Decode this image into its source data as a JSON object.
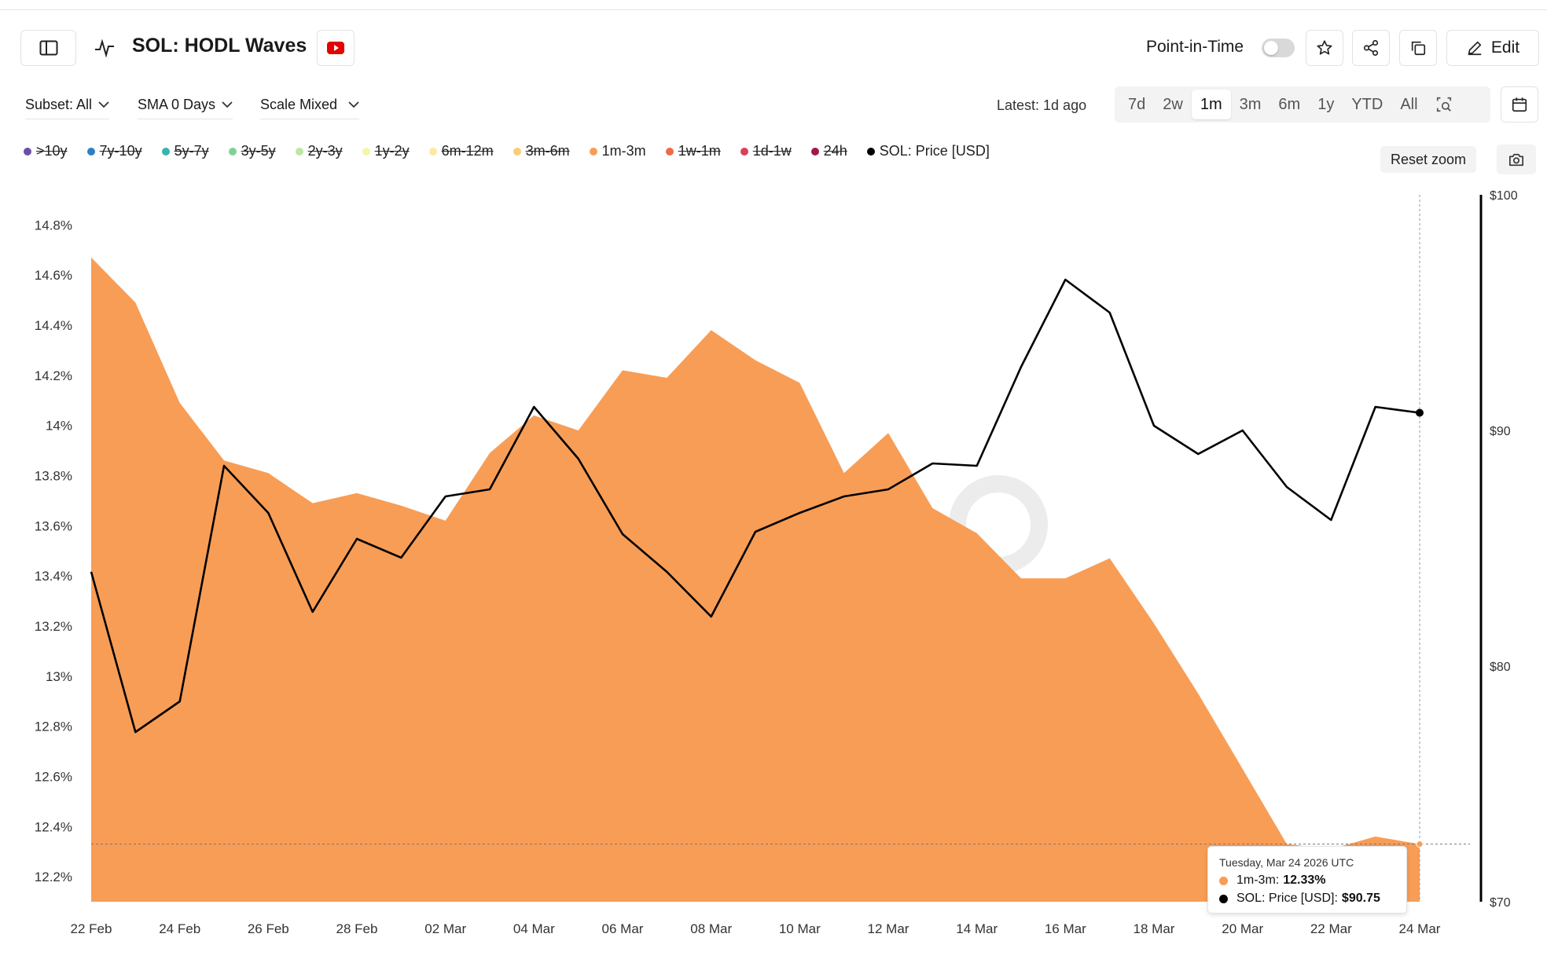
{
  "header": {
    "title": "SOL: HODL Waves",
    "point_in_time_label": "Point-in-Time",
    "edit_label": "Edit"
  },
  "filters": {
    "subset": "Subset: All",
    "sma": "SMA 0 Days",
    "scale": "Scale Mixed"
  },
  "latest": "Latest: 1d ago",
  "ranges": [
    "7d",
    "2w",
    "1m",
    "3m",
    "6m",
    "1y",
    "YTD",
    "All"
  ],
  "active_range": "1m",
  "reset_zoom_label": "Reset zoom",
  "legend": [
    {
      "label": ">10y",
      "color": "#6b4fa8",
      "hidden": true
    },
    {
      "label": "7y-10y",
      "color": "#2f7fc4",
      "hidden": true
    },
    {
      "label": "5y-7y",
      "color": "#35b5ad",
      "hidden": true
    },
    {
      "label": "3y-5y",
      "color": "#7ed19a",
      "hidden": true
    },
    {
      "label": "2y-3y",
      "color": "#bfe6a2",
      "hidden": true
    },
    {
      "label": "1y-2y",
      "color": "#f3f6a8",
      "hidden": true
    },
    {
      "label": "6m-12m",
      "color": "#fde9a5",
      "hidden": true
    },
    {
      "label": "3m-6m",
      "color": "#fccb76",
      "hidden": true
    },
    {
      "label": "1m-3m",
      "color": "#f89d56",
      "hidden": false
    },
    {
      "label": "1w-1m",
      "color": "#ee6a47",
      "hidden": true
    },
    {
      "label": "1d-1w",
      "color": "#d9405a",
      "hidden": true
    },
    {
      "label": "24h",
      "color": "#a3164e",
      "hidden": true
    },
    {
      "label": "SOL: Price [USD]",
      "color": "#000000",
      "hidden": false
    }
  ],
  "tooltip": {
    "date": "Tuesday, Mar 24 2026 UTC",
    "series1_label": "1m-3m:",
    "series1_value": "12.33%",
    "series2_label": "SOL: Price [USD]:",
    "series2_value": "$90.75"
  },
  "chart_data": {
    "type": "area",
    "title": "SOL: HODL Waves",
    "x": [
      "22 Feb",
      "23 Feb",
      "24 Feb",
      "25 Feb",
      "26 Feb",
      "27 Feb",
      "28 Feb",
      "01 Mar",
      "02 Mar",
      "03 Mar",
      "04 Mar",
      "05 Mar",
      "06 Mar",
      "07 Mar",
      "08 Mar",
      "09 Mar",
      "10 Mar",
      "11 Mar",
      "12 Mar",
      "13 Mar",
      "14 Mar",
      "15 Mar",
      "16 Mar",
      "17 Mar",
      "18 Mar",
      "19 Mar",
      "20 Mar",
      "21 Mar",
      "22 Mar",
      "23 Mar",
      "24 Mar"
    ],
    "xticks": [
      "22 Feb",
      "24 Feb",
      "26 Feb",
      "28 Feb",
      "02 Mar",
      "04 Mar",
      "06 Mar",
      "08 Mar",
      "10 Mar",
      "12 Mar",
      "14 Mar",
      "16 Mar",
      "18 Mar",
      "20 Mar",
      "22 Mar",
      "24 Mar"
    ],
    "series": [
      {
        "name": "1m-3m",
        "axis": "left",
        "type": "area",
        "color": "#f89d56",
        "values": [
          14.67,
          14.49,
          14.09,
          13.86,
          13.81,
          13.69,
          13.73,
          13.68,
          13.62,
          13.89,
          14.04,
          13.98,
          14.22,
          14.19,
          14.38,
          14.26,
          14.17,
          13.81,
          13.97,
          13.67,
          13.57,
          13.39,
          13.39,
          13.47,
          13.21,
          12.93,
          12.63,
          12.33,
          12.31,
          12.36,
          12.33
        ]
      },
      {
        "name": "SOL: Price [USD]",
        "axis": "right",
        "type": "line",
        "color": "#000000",
        "values": [
          84.0,
          77.2,
          78.5,
          88.5,
          86.5,
          82.3,
          85.4,
          84.6,
          87.2,
          87.5,
          91.0,
          88.8,
          85.6,
          84.0,
          82.1,
          85.7,
          86.5,
          87.2,
          87.5,
          88.6,
          88.5,
          92.7,
          96.4,
          95.0,
          90.2,
          89.0,
          90.0,
          87.6,
          86.2,
          91.0,
          90.75
        ]
      }
    ],
    "y_left": {
      "ticks": [
        "14.8%",
        "14.6%",
        "14.4%",
        "14.2%",
        "14%",
        "13.8%",
        "13.6%",
        "13.4%",
        "13.2%",
        "13%",
        "12.8%",
        "12.6%",
        "12.4%",
        "12.2%"
      ],
      "min": 12.1,
      "max": 14.92
    },
    "y_right": {
      "ticks": [
        "$100",
        "$90",
        "$80",
        "$70"
      ],
      "min": 70,
      "max": 100
    }
  }
}
